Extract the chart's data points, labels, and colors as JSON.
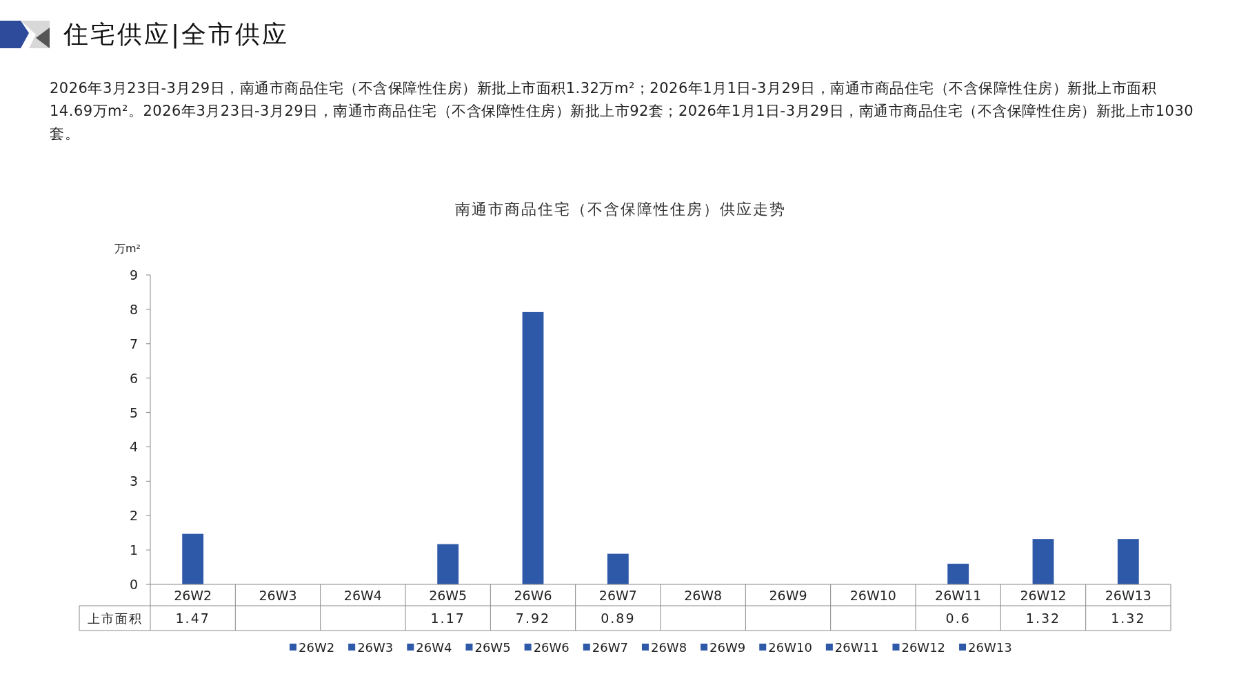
{
  "chart_data": {
    "type": "bar",
    "title": "南通市商品住宅（不含保障性住房）供应走势",
    "ylabel": "万m²",
    "annotations": [
      "住宅供应|全市供应",
      "2026年3月23日-3月29日，南通市商品住宅（不含保障性住房）新批上市面积1.32万m²；2026年1月1日-3月29日，南通市商品住宅（不含保障性住房）新批上市面积14.69万m²。2026年3月23日-3月29日，南通市商品住宅（不含保障性住房）新批上市92套；2026年1月1日-3月29日，南通市商品住宅（不含保障性住房）新批上市1030套。"
    ],
    "categories": [
      "26W2",
      "26W3",
      "26W4",
      "26W5",
      "26W6",
      "26W7",
      "26W8",
      "26W9",
      "26W10",
      "26W11",
      "26W12",
      "26W13"
    ],
    "series": [
      {
        "name": "上市面积",
        "color": "#2e59a8",
        "values": [
          1.47,
          null,
          null,
          1.17,
          7.92,
          0.89,
          null,
          null,
          null,
          0.6,
          1.32,
          1.32
        ]
      }
    ],
    "ylim": [
      0,
      9
    ],
    "yticks": [
      0,
      1,
      2,
      3,
      4,
      5,
      6,
      7,
      8,
      9
    ],
    "data_labels": true,
    "legend": "bottom",
    "grid": false
  }
}
